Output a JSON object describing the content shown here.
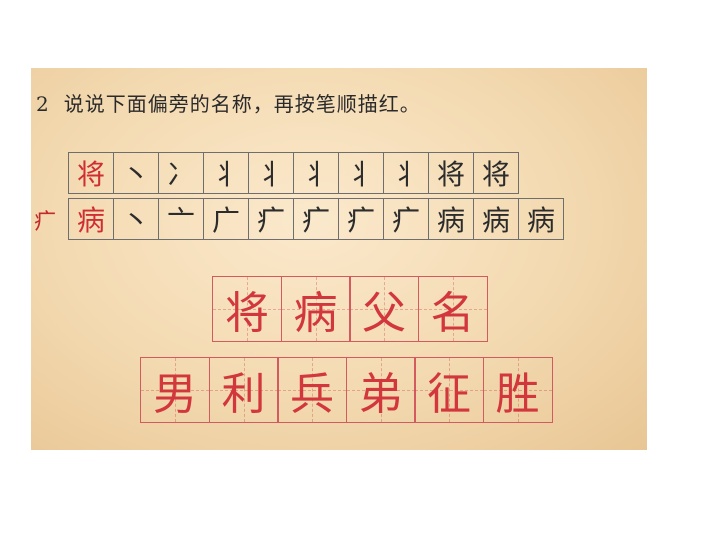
{
  "instruction": {
    "number": "2",
    "text": "说说下面偏旁的名称，再按笔顺描红。"
  },
  "radical_label": "疒",
  "stroke_rows": [
    {
      "character": "将",
      "steps": [
        "丶",
        "冫",
        "丬",
        "丬",
        "丬",
        "丬",
        "丬",
        "将",
        "将",
        ""
      ]
    },
    {
      "character": "病",
      "steps": [
        "丶",
        "亠",
        "广",
        "疒",
        "疒",
        "疒",
        "疒",
        "病",
        "病",
        "病"
      ]
    }
  ],
  "practice": {
    "row1": [
      "将",
      "病",
      "父",
      "名"
    ],
    "row2": [
      "男",
      "利",
      "兵",
      "弟",
      "征",
      "胜"
    ]
  }
}
